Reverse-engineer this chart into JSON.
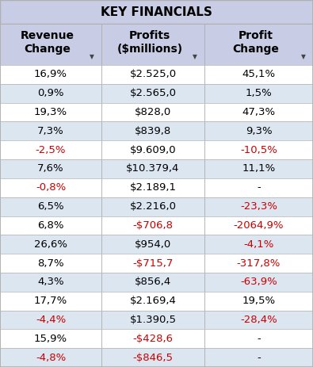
{
  "title": "KEY FINANCIALS",
  "columns": [
    "Revenue\nChange",
    "Profits\n($millions)",
    "Profit\nChange"
  ],
  "rows": [
    [
      "16,9%",
      "$2.525,0",
      "45,1%"
    ],
    [
      "0,9%",
      "$2.565,0",
      "1,5%"
    ],
    [
      "19,3%",
      "$828,0",
      "47,3%"
    ],
    [
      "7,3%",
      "$839,8",
      "9,3%"
    ],
    [
      "-2,5%",
      "$9.609,0",
      "-10,5%"
    ],
    [
      "7,6%",
      "$10.379,4",
      "11,1%"
    ],
    [
      "-0,8%",
      "$2.189,1",
      "-"
    ],
    [
      "6,5%",
      "$2.216,0",
      "-23,3%"
    ],
    [
      "6,8%",
      "-$706,8",
      "-2064,9%"
    ],
    [
      "26,6%",
      "$954,0",
      "-4,1%"
    ],
    [
      "8,7%",
      "-$715,7",
      "-317,8%"
    ],
    [
      "4,3%",
      "$856,4",
      "-63,9%"
    ],
    [
      "17,7%",
      "$2.169,4",
      "19,5%"
    ],
    [
      "-4,4%",
      "$1.390,5",
      "-28,4%"
    ],
    [
      "15,9%",
      "-$428,6",
      "-"
    ],
    [
      "-4,8%",
      "-$846,5",
      "-"
    ]
  ],
  "row_colors": [
    [
      "#000000",
      "#000000",
      "#000000"
    ],
    [
      "#000000",
      "#000000",
      "#000000"
    ],
    [
      "#000000",
      "#000000",
      "#000000"
    ],
    [
      "#000000",
      "#000000",
      "#000000"
    ],
    [
      "#cc0000",
      "#000000",
      "#cc0000"
    ],
    [
      "#000000",
      "#000000",
      "#000000"
    ],
    [
      "#cc0000",
      "#000000",
      "#000000"
    ],
    [
      "#000000",
      "#000000",
      "#cc0000"
    ],
    [
      "#000000",
      "#cc0000",
      "#cc0000"
    ],
    [
      "#000000",
      "#000000",
      "#cc0000"
    ],
    [
      "#000000",
      "#cc0000",
      "#cc0000"
    ],
    [
      "#000000",
      "#000000",
      "#cc0000"
    ],
    [
      "#000000",
      "#000000",
      "#000000"
    ],
    [
      "#cc0000",
      "#000000",
      "#cc0000"
    ],
    [
      "#000000",
      "#cc0000",
      "#000000"
    ],
    [
      "#cc0000",
      "#cc0000",
      "#000000"
    ]
  ],
  "header_bg": "#c8cce4",
  "row_bg_even": "#ffffff",
  "row_bg_odd": "#dce6f1",
  "border_color": "#b0b0b0",
  "title_fontsize": 11,
  "header_fontsize": 10,
  "data_fontsize": 9.5
}
